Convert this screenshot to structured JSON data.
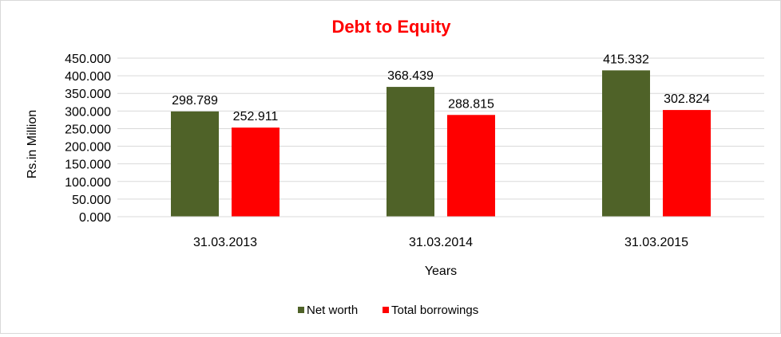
{
  "chart_data": {
    "type": "bar",
    "title": "Debt to Equity",
    "xlabel": "Years",
    "ylabel": "Rs.in Million",
    "categories": [
      "31.03.2013",
      "31.03.2014",
      "31.03.2015"
    ],
    "series": [
      {
        "name": "Net worth",
        "color": "#4f6228",
        "values": [
          298.789,
          368.439,
          415.332
        ],
        "value_labels": [
          "298.789",
          "368.439",
          "415.332"
        ]
      },
      {
        "name": "Total borrowings",
        "color": "#ff0000",
        "values": [
          252.911,
          288.815,
          302.824
        ],
        "value_labels": [
          "252.911",
          "288.815",
          "302.824"
        ]
      }
    ],
    "ylim": [
      0,
      450
    ],
    "yticks": [
      0,
      50,
      100,
      150,
      200,
      250,
      300,
      350,
      400,
      450
    ],
    "ytick_labels": [
      "0.000",
      "50.000",
      "100.000",
      "150.000",
      "200.000",
      "250.000",
      "300.000",
      "350.000",
      "400.000",
      "450.000"
    ],
    "grid": true,
    "legend_position": "bottom",
    "title_color": "#ff0000",
    "gridline_color": "#d9d9d9"
  }
}
